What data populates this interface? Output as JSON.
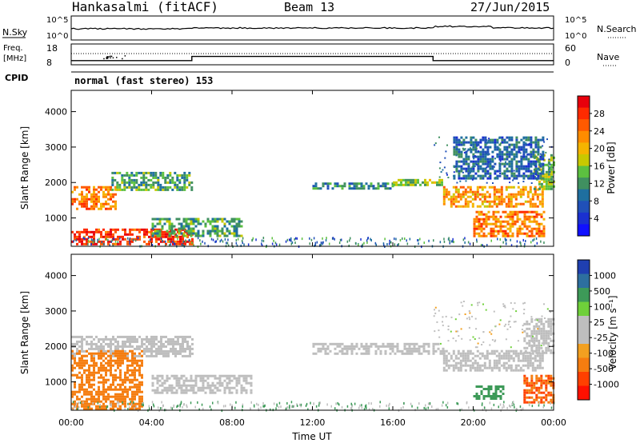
{
  "header": {
    "station": "Hankasalmi (fitACF)",
    "beam": "Beam 13",
    "date": "27/Jun/2015"
  },
  "summary": {
    "nsky_label": "N.Sky",
    "nsearch_label": "N.Search",
    "noise_ticks_left": [
      "10^5",
      "10^0"
    ],
    "noise_ticks_right": [
      "10^5",
      "10^0"
    ],
    "freq_label_1": "Freq.",
    "freq_label_2": "[MHz]",
    "freq_ticks": [
      "18",
      "8"
    ],
    "nave_label": "Nave",
    "nave_ticks": [
      "60",
      "0"
    ],
    "cpid_label": "CPID",
    "cpid_text": "normal (fast stereo) 153"
  },
  "panels": [
    {
      "name": "power",
      "ylabel": "Slant Range [km]",
      "yticks": [
        "4000",
        "3000",
        "2000",
        "1000"
      ],
      "cbar_label": "Power [dB]",
      "cbar_ticks": [
        "28",
        "24",
        "20",
        "16",
        "12",
        "8",
        "4"
      ],
      "cbar_colors": [
        "#e8000c",
        "#ff2a00",
        "#ff5a00",
        "#ff8c00",
        "#f5b400",
        "#c8c800",
        "#5cc040",
        "#409060",
        "#1f6f9f",
        "#2050b8",
        "#1a30d0",
        "#1010ff"
      ]
    },
    {
      "name": "velocity",
      "ylabel": "Slant Range [km]",
      "yticks": [
        "4000",
        "3000",
        "2000",
        "1000"
      ],
      "cbar_label": "Velocity [m s⁻¹]",
      "cbar_ticks": [
        "1000",
        "500",
        "100",
        "25",
        "-25",
        "-100",
        "-500",
        "-1000"
      ],
      "cbar_colors": [
        "#1f3fb0",
        "#2d6f9f",
        "#3d9a58",
        "#6fd03a",
        "#bebebe",
        "#bebebe",
        "#f2a020",
        "#f57d10",
        "#ff4000",
        "#ff1000"
      ]
    }
  ],
  "xaxis": {
    "ticks": [
      "00:00",
      "04:00",
      "08:00",
      "12:00",
      "16:00",
      "20:00",
      "00:00"
    ],
    "label": "Time UT"
  },
  "chart_data": {
    "type": "heatmap",
    "title": "Hankasalmi (fitACF) Beam 13 27/Jun/2015",
    "xlabel": "Time UT",
    "ylabel": "Slant Range [km]",
    "xlim": [
      0,
      24
    ],
    "ylim": [
      200,
      4600
    ],
    "frequency_MHz": [
      {
        "t0": 0,
        "t1": 6,
        "value": 10
      },
      {
        "t0": 6,
        "t1": 18,
        "value": 12
      },
      {
        "t0": 18,
        "t1": 24,
        "value": 10
      }
    ],
    "power_bands_dB": [
      {
        "t0": 0.0,
        "t1": 6.0,
        "r0": 250,
        "r1": 700,
        "value": 26
      },
      {
        "t0": 0.0,
        "t1": 2.2,
        "r0": 1250,
        "r1": 1900,
        "value": 22
      },
      {
        "t0": 2.0,
        "t1": 6.0,
        "r0": 1800,
        "r1": 2300,
        "value": 12
      },
      {
        "t0": 4.0,
        "t1": 8.5,
        "r0": 500,
        "r1": 1000,
        "value": 12
      },
      {
        "t0": 12.0,
        "t1": 16.0,
        "r0": 1800,
        "r1": 2000,
        "value": 10
      },
      {
        "t0": 16.0,
        "t1": 18.5,
        "r0": 1900,
        "r1": 2100,
        "value": 14
      },
      {
        "t0": 18.5,
        "t1": 23.5,
        "r0": 1300,
        "r1": 1900,
        "value": 20
      },
      {
        "t0": 23.0,
        "t1": 24.0,
        "r0": 1800,
        "r1": 2800,
        "value": 14
      },
      {
        "t0": 20.0,
        "t1": 23.5,
        "r0": 500,
        "r1": 1200,
        "value": 22
      },
      {
        "t0": 19.0,
        "t1": 23.5,
        "r0": 2100,
        "r1": 3300,
        "value": 8
      }
    ],
    "velocity_bands_ms": [
      {
        "t0": 0.0,
        "t1": 6.0,
        "r0": 1750,
        "r1": 2300,
        "value": 0
      },
      {
        "t0": 0.0,
        "t1": 3.5,
        "r0": 250,
        "r1": 1900,
        "value": -150
      },
      {
        "t0": 4.0,
        "t1": 9.0,
        "r0": 700,
        "r1": 1200,
        "value": 0
      },
      {
        "t0": 12.0,
        "t1": 18.5,
        "r0": 1800,
        "r1": 2100,
        "value": 0
      },
      {
        "t0": 18.5,
        "t1": 23.5,
        "r0": 1300,
        "r1": 1900,
        "value": 0
      },
      {
        "t0": 20.0,
        "t1": 21.5,
        "r0": 500,
        "r1": 900,
        "value": 150
      },
      {
        "t0": 22.5,
        "t1": 24.0,
        "r0": 400,
        "r1": 1200,
        "value": -300
      },
      {
        "t0": 22.5,
        "t1": 24.0,
        "r0": 1800,
        "r1": 2800,
        "value": 0
      }
    ]
  }
}
